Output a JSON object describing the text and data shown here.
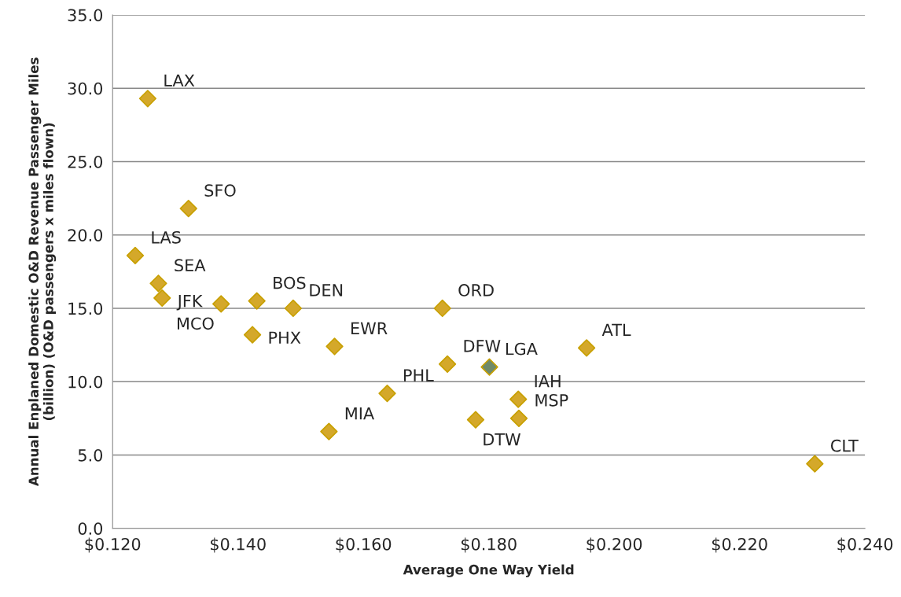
{
  "chart_data": {
    "type": "scatter",
    "xlabel": "Average One Way Yield",
    "ylabel": "Annual Enplaned Domestic O&D Revenue Passenger Miles\n(billion) (O&D passengers x miles flown)",
    "xlim": [
      0.12,
      0.24
    ],
    "xticks": [
      {
        "value": 0.12,
        "label": "$0.120"
      },
      {
        "value": 0.14,
        "label": "$0.140"
      },
      {
        "value": 0.16,
        "label": "$0.160"
      },
      {
        "value": 0.18,
        "label": "$0.180"
      },
      {
        "value": 0.2,
        "label": "$0.200"
      },
      {
        "value": 0.22,
        "label": "$0.220"
      },
      {
        "value": 0.24,
        "label": "$0.240"
      }
    ],
    "ylim": [
      0,
      35
    ],
    "yticks": [
      {
        "value": 0,
        "label": "0.0"
      },
      {
        "value": 5,
        "label": "5.0"
      },
      {
        "value": 10,
        "label": "10.0"
      },
      {
        "value": 15,
        "label": "15.0"
      },
      {
        "value": 20,
        "label": "20.0"
      },
      {
        "value": 25,
        "label": "25.0"
      },
      {
        "value": 30,
        "label": "30.0"
      },
      {
        "value": 35,
        "label": "35.0"
      }
    ],
    "grid": "y",
    "marker": "diamond",
    "series": [
      {
        "x": [
          0.1256,
          0.1321,
          0.1236,
          0.1273,
          0.1279,
          0.1373,
          0.143,
          0.1488,
          0.1423,
          0.1554,
          0.1638,
          0.1545,
          0.1726,
          0.1734,
          0.1801,
          0.1779,
          0.1847,
          0.1848,
          0.1956,
          0.232
        ],
        "values": [
          29.3,
          21.8,
          18.6,
          16.7,
          15.7,
          15.3,
          15.5,
          15.0,
          13.2,
          12.4,
          9.2,
          6.6,
          15.0,
          11.2,
          11.0,
          7.4,
          8.8,
          7.5,
          12.3,
          4.4
        ],
        "colors": [
          "#d4a82a",
          "#d4a82a",
          "#d4a82a",
          "#d4a82a",
          "#d4a82a",
          "#d4a82a",
          "#d4a82a",
          "#d4a82a",
          "#d4a82a",
          "#d4a82a",
          "#d4a82a",
          "#d4a82a",
          "#d4a82a",
          "#d4a82a",
          "#6f8a6a",
          "#d4a82a",
          "#d4a82a",
          "#d4a82a",
          "#d4a82a",
          "#d4a82a"
        ]
      }
    ],
    "annotations": [
      {
        "text": "LAX",
        "x": 0.1256,
        "y": 29.3
      },
      {
        "text": "SFO",
        "x": 0.1321,
        "y": 21.8
      },
      {
        "text": "LAS",
        "x": 0.1236,
        "y": 18.6
      },
      {
        "text": "SEA",
        "x": 0.1273,
        "y": 16.7
      },
      {
        "text": "JFK",
        "x": 0.1279,
        "y": 15.7
      },
      {
        "text": "MCO",
        "x": 0.1373,
        "y": 15.3
      },
      {
        "text": "BOS",
        "x": 0.143,
        "y": 15.5
      },
      {
        "text": "DEN",
        "x": 0.1488,
        "y": 15.0
      },
      {
        "text": "PHX",
        "x": 0.1423,
        "y": 13.2
      },
      {
        "text": "EWR",
        "x": 0.1554,
        "y": 12.4
      },
      {
        "text": "PHL",
        "x": 0.1638,
        "y": 9.2
      },
      {
        "text": "MIA",
        "x": 0.1545,
        "y": 6.6
      },
      {
        "text": "ORD",
        "x": 0.1726,
        "y": 15.0
      },
      {
        "text": "DFW",
        "x": 0.1734,
        "y": 11.2
      },
      {
        "text": "LGA",
        "x": 0.1801,
        "y": 11.0
      },
      {
        "text": "DTW",
        "x": 0.1779,
        "y": 7.4
      },
      {
        "text": "IAH",
        "x": 0.1847,
        "y": 8.8
      },
      {
        "text": "MSP",
        "x": 0.1848,
        "y": 7.5
      },
      {
        "text": "ATL",
        "x": 0.1956,
        "y": 12.3
      },
      {
        "text": "CLT",
        "x": 0.232,
        "y": 4.4
      }
    ]
  }
}
